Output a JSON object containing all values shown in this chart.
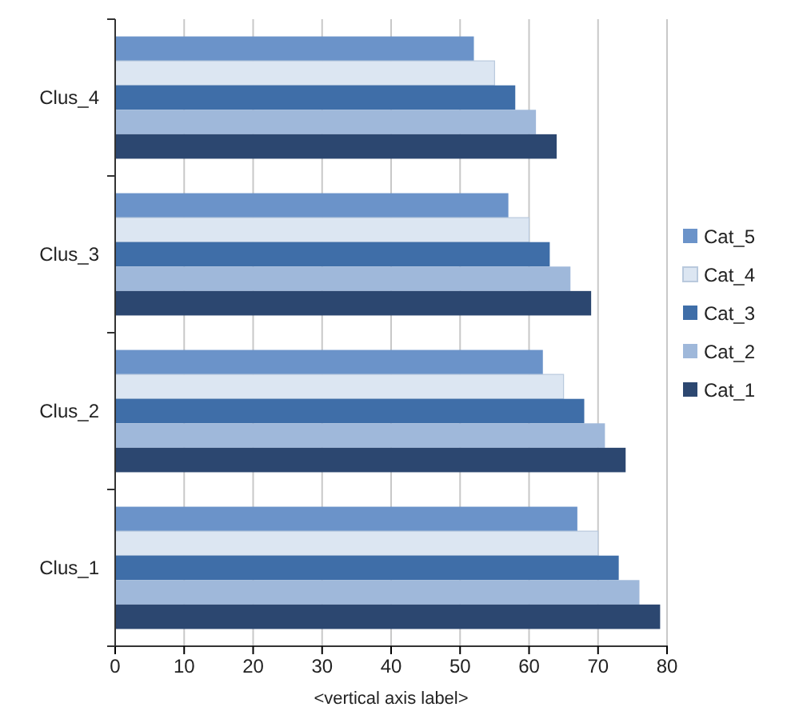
{
  "chart_data": {
    "type": "bar",
    "orientation": "horizontal",
    "xlabel": "<vertical axis label>",
    "categories": [
      "Clus_4",
      "Clus_3",
      "Clus_2",
      "Clus_1"
    ],
    "series": [
      {
        "name": "Cat_5",
        "color": "#6b93c9",
        "values": [
          52,
          57,
          62,
          67
        ]
      },
      {
        "name": "Cat_4",
        "color": "#dce6f2",
        "values": [
          55,
          60,
          65,
          70
        ]
      },
      {
        "name": "Cat_3",
        "color": "#3f6ea8",
        "values": [
          58,
          63,
          68,
          73
        ]
      },
      {
        "name": "Cat_2",
        "color": "#9fb8da",
        "values": [
          61,
          66,
          71,
          76
        ]
      },
      {
        "name": "Cat_1",
        "color": "#2c4770",
        "values": [
          64,
          69,
          74,
          79
        ]
      }
    ],
    "xlim": [
      0,
      80
    ],
    "xticks": [
      0,
      10,
      20,
      30,
      40,
      50,
      60,
      70,
      80
    ],
    "grid": "x",
    "legend": "right"
  }
}
